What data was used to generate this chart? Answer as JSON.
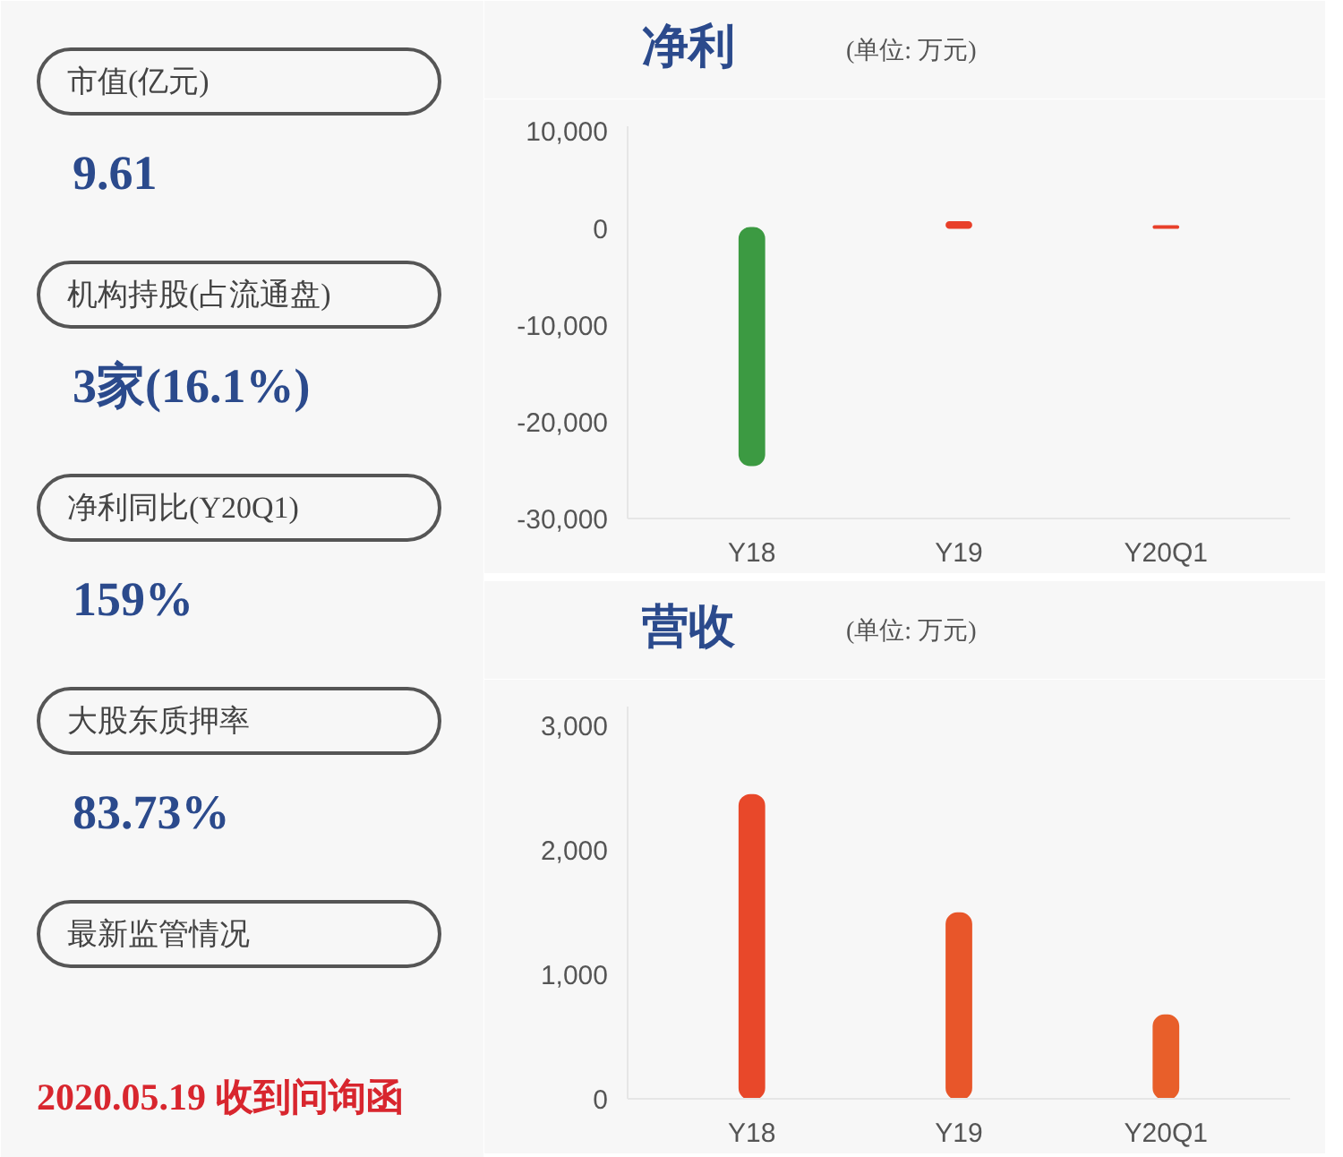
{
  "chart_data": [
    {
      "type": "other",
      "annotations": [
        "市值(亿元)",
        "9.61",
        "机构持股(占流通盘)",
        "3家(16.1%)",
        "净利同比(Y20Q1)",
        "159%",
        "大股东质押率",
        "83.73%",
        "最新监管情况",
        "2020.05.19 收到问询函"
      ]
    },
    {
      "type": "bar",
      "title": "净利",
      "subtitle": "(单位: 万元)",
      "categories": [
        "Y18",
        "Y19",
        "Y20Q1"
      ],
      "values": [
        -24500,
        600,
        200
      ],
      "colors": [
        "#3c9a42",
        "#e8402a",
        "#e8402a"
      ],
      "ylim": [
        -30000,
        10500
      ],
      "yticks": [
        {
          "value": 10000,
          "label": "10,000"
        },
        0,
        {
          "value": -10000,
          "label": "-10,000"
        },
        {
          "value": -20000,
          "label": "-20,000"
        },
        {
          "value": -30000,
          "label": "-30,000"
        }
      ],
      "grid": false
    },
    {
      "type": "bar",
      "title": "营收",
      "subtitle": "(单位: 万元)",
      "categories": [
        "Y18",
        "Y19",
        "Y20Q1"
      ],
      "values": [
        2440,
        1490,
        670
      ],
      "colors": [
        "#e8482a",
        "#e8562a",
        "#e85f2a"
      ],
      "ylim": [
        0,
        3150
      ],
      "yticks": [
        0,
        {
          "value": 1000,
          "label": "1,000"
        },
        {
          "value": 2000,
          "label": "2,000"
        },
        {
          "value": 3000,
          "label": "3,000"
        }
      ],
      "grid": false
    }
  ]
}
